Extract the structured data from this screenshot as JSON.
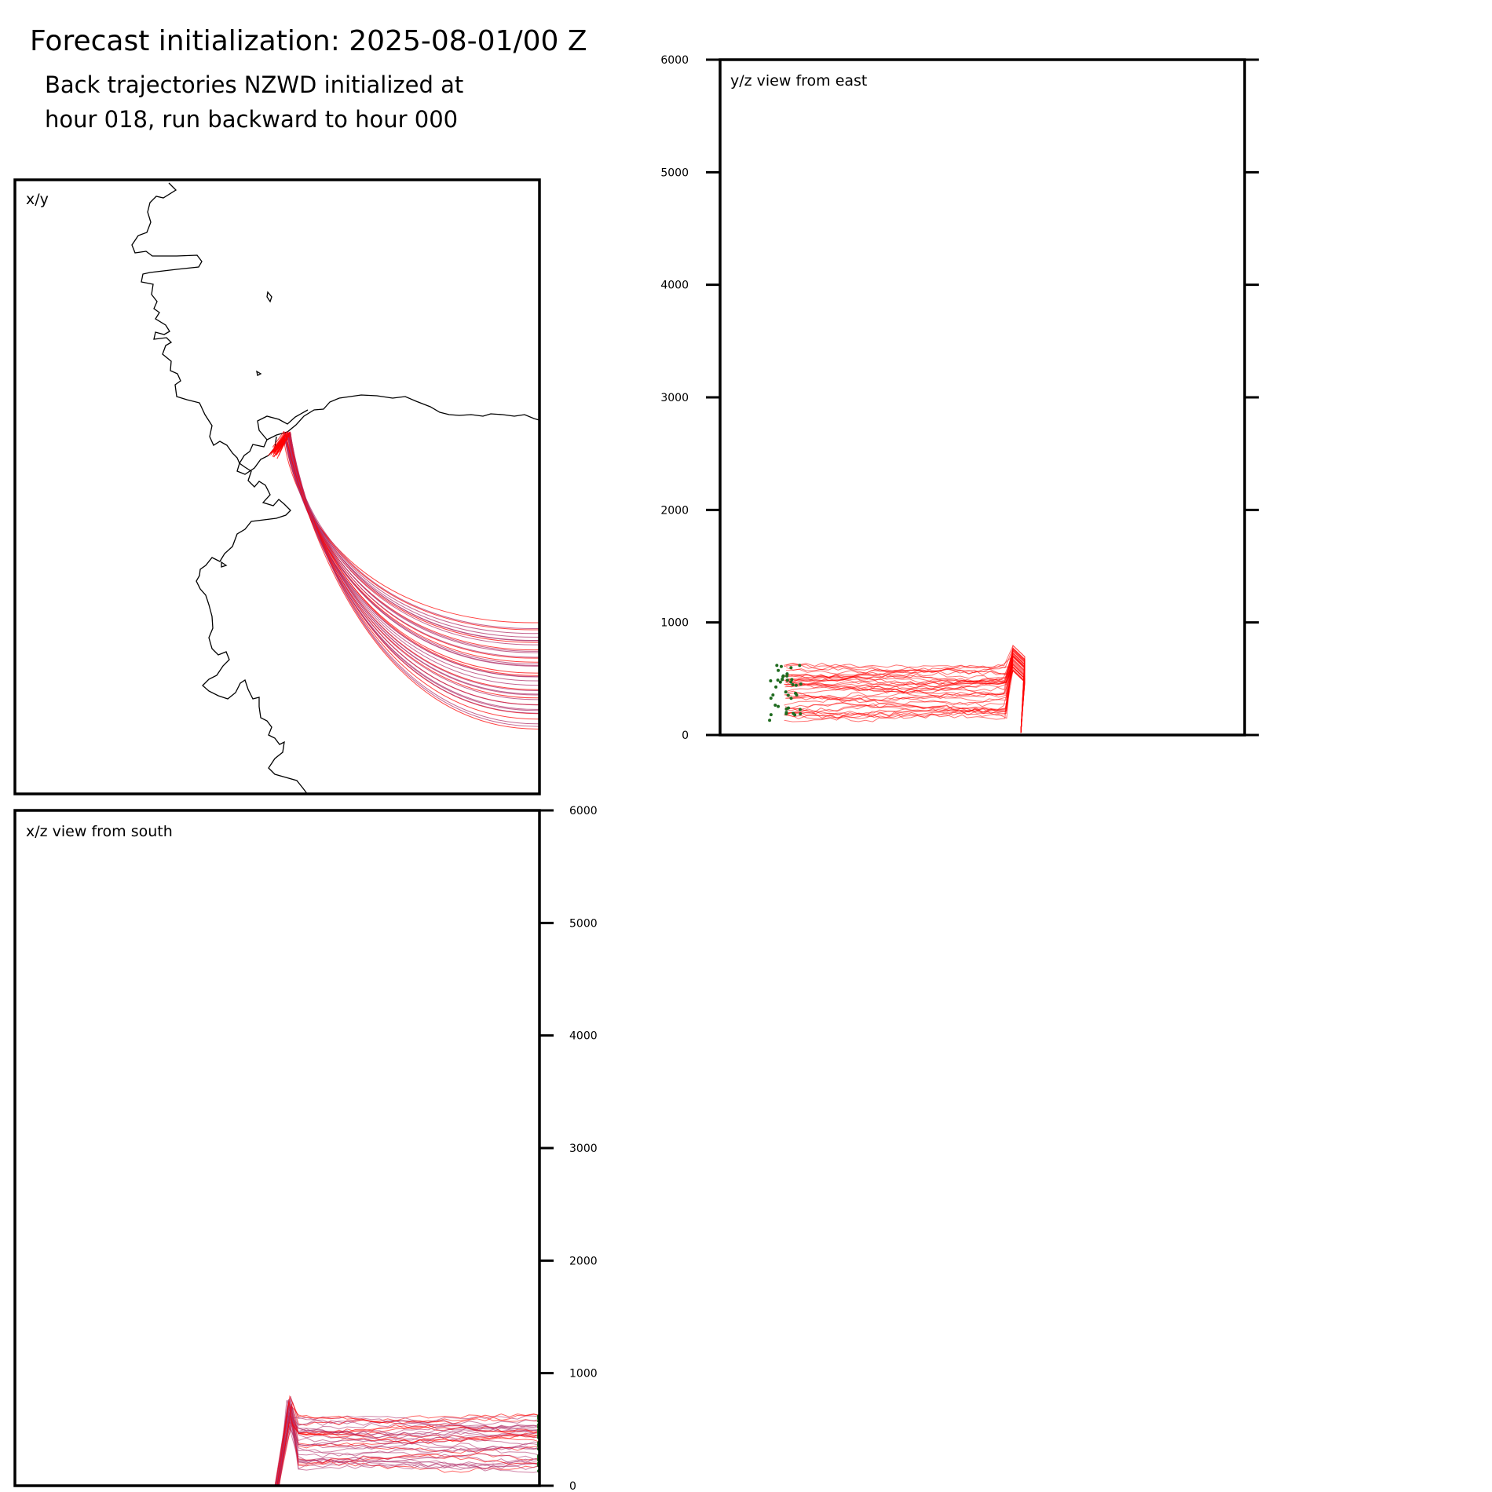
{
  "header": {
    "title": "Forecast initialization: 2025-08-01/00 Z",
    "subtitle_line1": "Back trajectories NZWD initialized at",
    "subtitle_line2": "hour 018, run backward to hour 000"
  },
  "colors": {
    "trajectory_start": "#ff0000",
    "trajectory_end": "#b0306a",
    "endpoint_marker": "#1f6b1f",
    "coastline": "#000000",
    "frame": "#000000"
  },
  "chart_data": [
    {
      "type": "line",
      "panel": "xy",
      "label": "x/y",
      "series_count": 40,
      "description_source": "map of back-trajectory paths over coastline",
      "grid": false
    },
    {
      "type": "line",
      "panel": "yz",
      "label": "y/z view from east",
      "ylim": [
        0,
        6000
      ],
      "yticks": [
        0,
        1000,
        2000,
        3000,
        4000,
        5000,
        6000
      ],
      "tick_side": "left",
      "grid": false
    },
    {
      "type": "line",
      "panel": "xz",
      "label": "x/z view from south",
      "ylim": [
        0,
        6000
      ],
      "yticks": [
        0,
        1000,
        2000,
        3000,
        4000,
        5000,
        6000
      ],
      "tick_side": "right",
      "grid": false
    }
  ]
}
